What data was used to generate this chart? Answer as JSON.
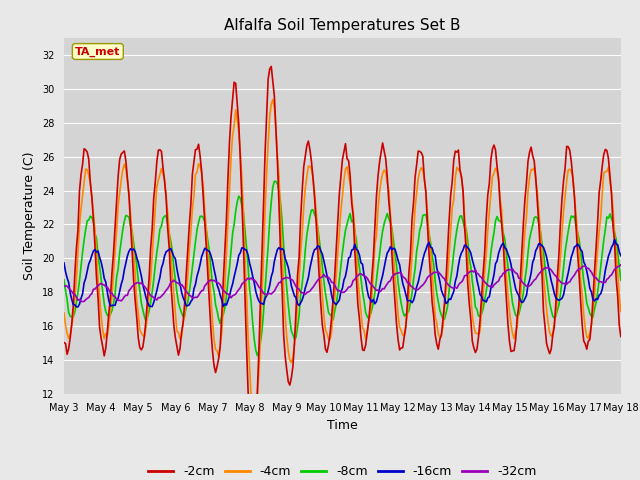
{
  "title": "Alfalfa Soil Temperatures Set B",
  "xlabel": "Time",
  "ylabel": "Soil Temperature (C)",
  "ylim": [
    12,
    33
  ],
  "yticks": [
    12,
    14,
    16,
    18,
    20,
    22,
    24,
    26,
    28,
    30,
    32
  ],
  "background_color": "#e8e8e8",
  "plot_bg_color": "#d4d4d4",
  "series": {
    "-2cm": {
      "color": "#cc0000"
    },
    "-4cm": {
      "color": "#ff8800"
    },
    "-8cm": {
      "color": "#00cc00"
    },
    "-16cm": {
      "color": "#0000cc"
    },
    "-32cm": {
      "color": "#9900bb"
    }
  },
  "xtick_labels": [
    "May 3",
    "May 4",
    "May 5",
    "May 6",
    "May 7",
    "May 8",
    "May 9",
    "May 10",
    "May 11",
    "May 12",
    "May 13",
    "May 14",
    "May 15",
    "May 16",
    "May 17",
    "May 18"
  ],
  "annotation_text": "TA_met",
  "n_days": 15,
  "hrs_per_day": 24,
  "amp2_base": 6.0,
  "amp4_base": 5.0,
  "amp8_base": 3.0,
  "amp16_base": 1.3,
  "amp32_base": 0.5,
  "mean2": 20.5,
  "mean4": 20.3,
  "mean8": 19.5,
  "mean16": 18.8,
  "mean32": 17.9,
  "trend32": 1.2,
  "trend16": 0.4
}
